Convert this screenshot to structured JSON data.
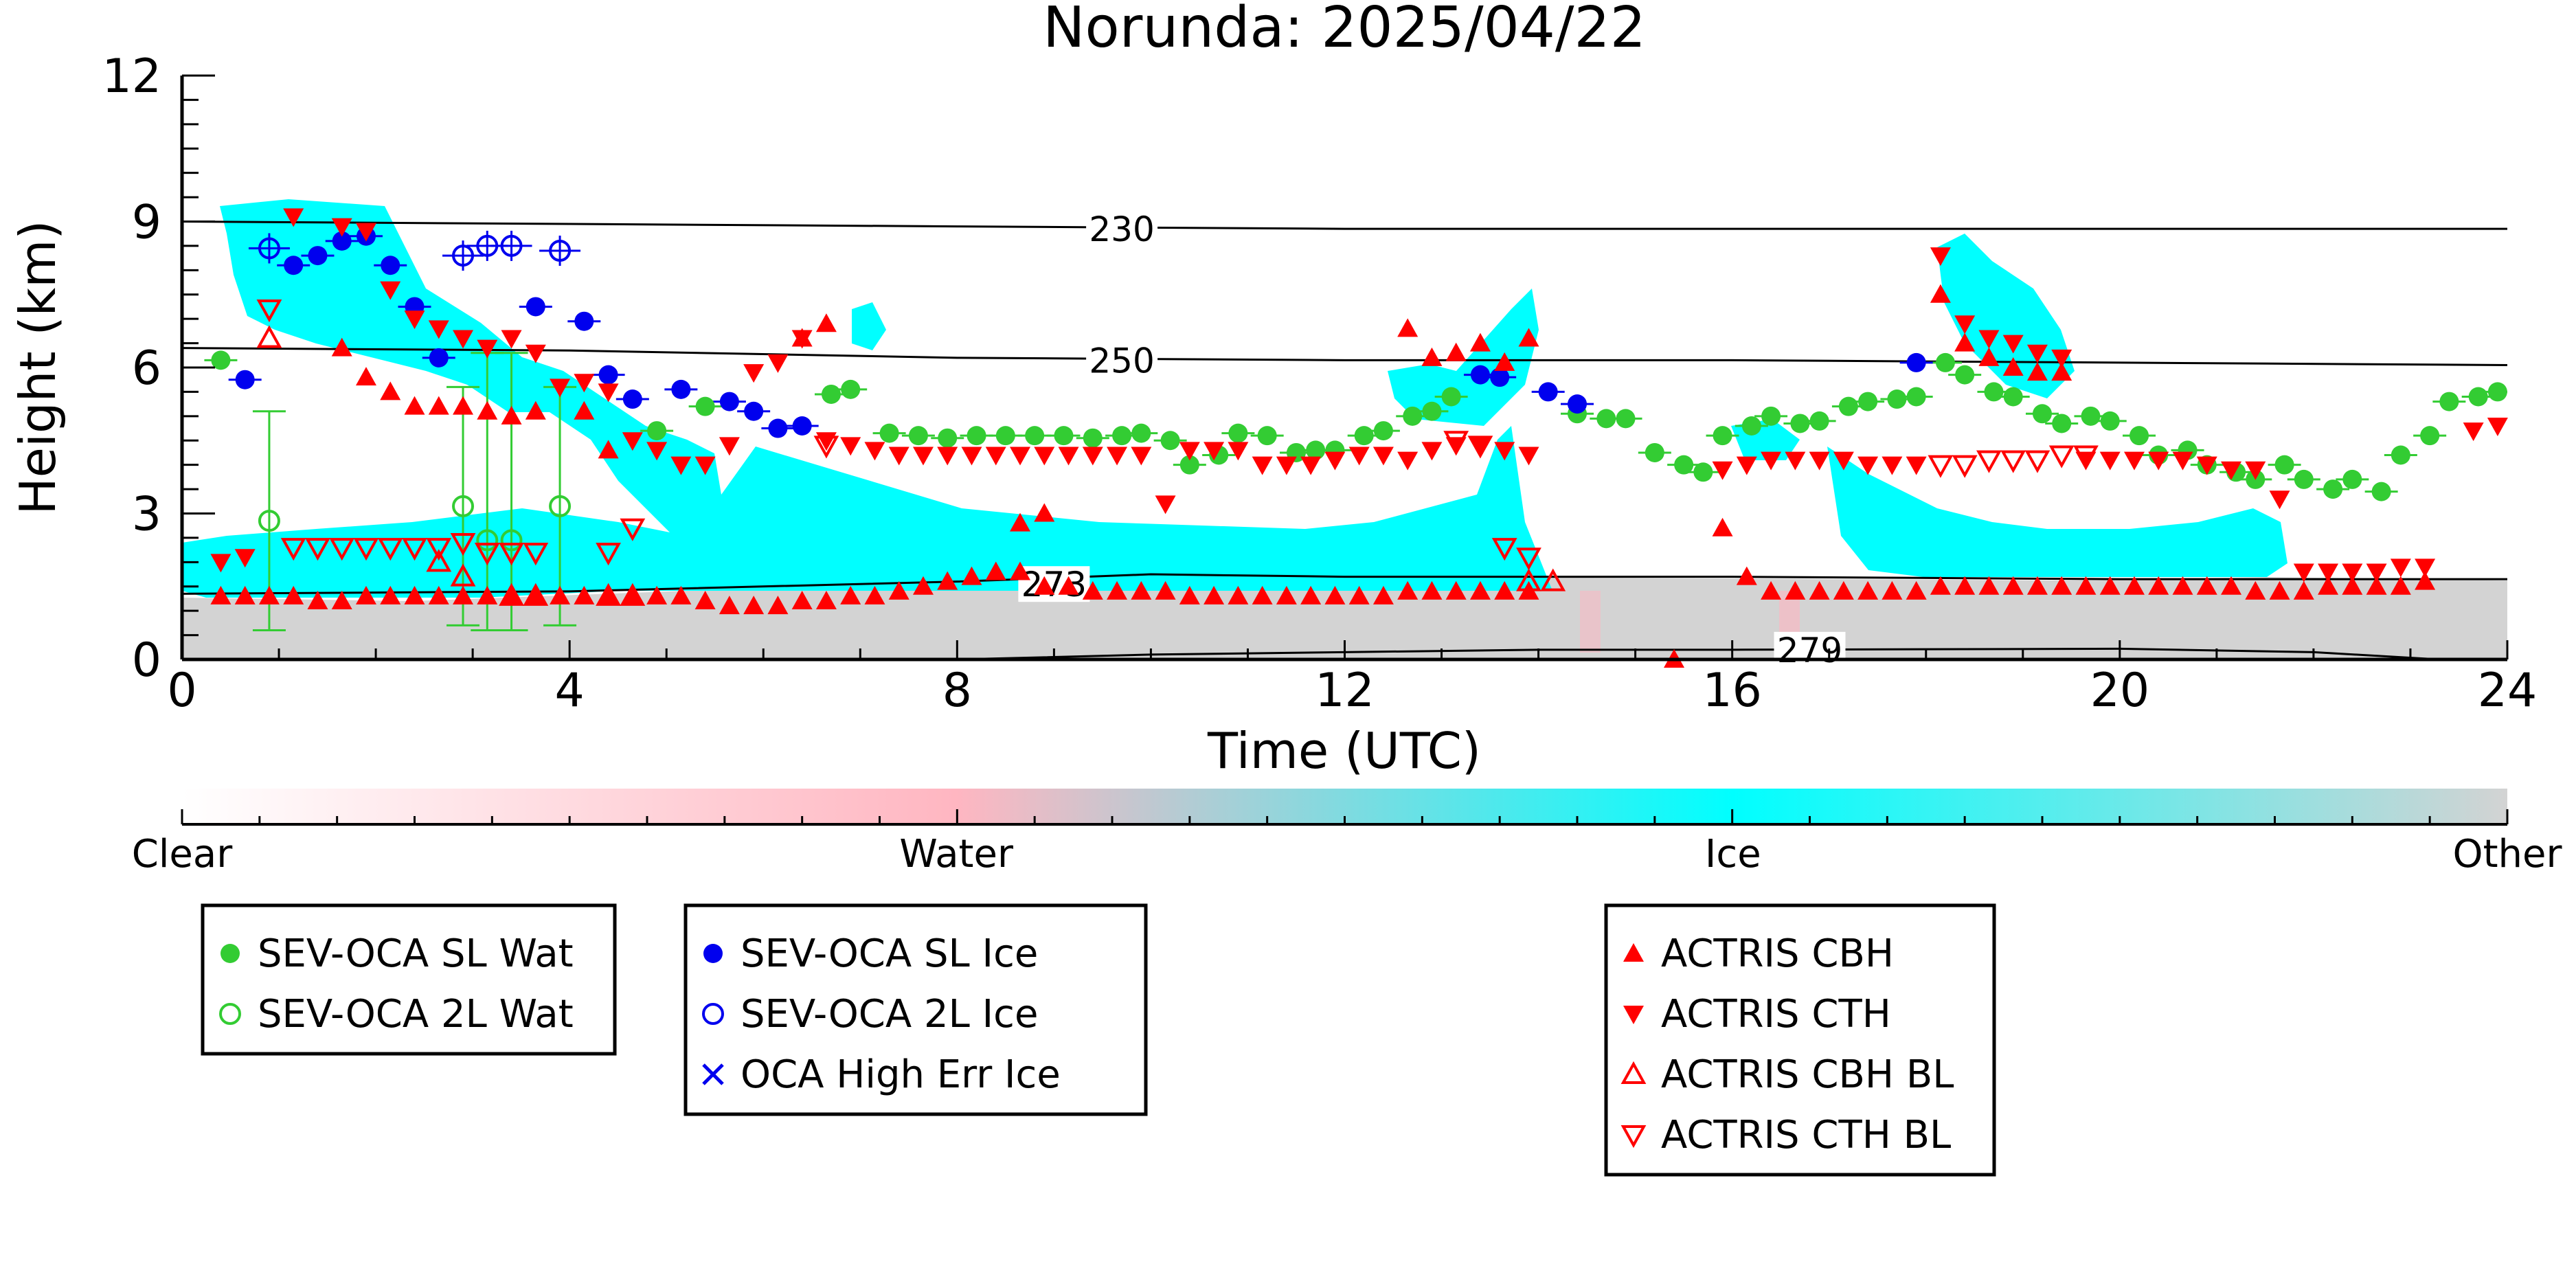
{
  "chart_data": {
    "type": "scatter",
    "title": "Norunda: 2025/04/22",
    "xlabel": "Time (UTC)",
    "ylabel": "Height (km)",
    "xlim": [
      0,
      24
    ],
    "ylim": [
      0,
      12
    ],
    "xticks": [
      0,
      4,
      8,
      12,
      16,
      20,
      24
    ],
    "yticks": [
      0,
      3,
      6,
      9,
      12
    ],
    "grid": false,
    "colorbar": {
      "labels": [
        "Clear",
        "Water",
        "Ice",
        "Other"
      ],
      "colors": [
        "#ffffff",
        "#ffb6c1",
        "#00ffff",
        "#d3d3d3"
      ],
      "positions": [
        0,
        0.333,
        0.667,
        1
      ]
    },
    "isotherms": [
      {
        "label": "230",
        "x": [
          0,
          4,
          8,
          12,
          16,
          20,
          24
        ],
        "y": [
          9.0,
          8.95,
          8.9,
          8.85,
          8.85,
          8.85,
          8.85
        ]
      },
      {
        "label": "250",
        "x": [
          0,
          4,
          8,
          12,
          16,
          20,
          24
        ],
        "y": [
          6.4,
          6.35,
          6.2,
          6.15,
          6.15,
          6.1,
          6.05
        ]
      },
      {
        "label": "273",
        "x": [
          0,
          4,
          8,
          10,
          12,
          16,
          20,
          24
        ],
        "y": [
          1.35,
          1.4,
          1.6,
          1.75,
          1.7,
          1.7,
          1.65,
          1.65
        ]
      },
      {
        "label": "279",
        "x": [
          8,
          10,
          12,
          14,
          16,
          20,
          22,
          23.3
        ],
        "y": [
          0.0,
          0.1,
          0.15,
          0.2,
          0.2,
          0.22,
          0.15,
          0.0
        ]
      }
    ],
    "legend_groups": [
      [
        "SEV-OCA SL Wat",
        "SEV-OCA 2L Wat"
      ],
      [
        "SEV-OCA SL Ice",
        "SEV-OCA 2L Ice",
        "OCA High Err Ice"
      ],
      [
        "ACTRIS CBH",
        "ACTRIS CTH",
        "ACTRIS CBH BL",
        "ACTRIS CTH BL"
      ]
    ],
    "series": [
      {
        "name": "SEV-OCA SL Wat",
        "marker": "filled-circle",
        "color": "#33cc33",
        "x": [
          0.4,
          4.9,
          5.4,
          6.7,
          6.9,
          7.3,
          7.6,
          7.9,
          8.2,
          8.5,
          8.8,
          9.1,
          9.4,
          9.7,
          9.9,
          10.2,
          10.4,
          10.7,
          10.9,
          11.2,
          11.5,
          11.7,
          11.9,
          12.2,
          12.4,
          12.7,
          12.9,
          13.1,
          14.4,
          14.7,
          14.9,
          15.2,
          15.5,
          15.7,
          15.9,
          16.2,
          16.4,
          16.7,
          16.9,
          17.2,
          17.4,
          17.7,
          17.9,
          18.2,
          18.4,
          18.7,
          18.9,
          19.2,
          19.4,
          19.7,
          19.9,
          20.2,
          20.4,
          20.7,
          20.9,
          21.2,
          21.4,
          21.7,
          21.9,
          22.2,
          22.4,
          22.7,
          22.9,
          23.2,
          23.4,
          23.7,
          23.9
        ],
        "y": [
          6.15,
          4.7,
          5.2,
          5.45,
          5.55,
          4.65,
          4.6,
          4.55,
          4.6,
          4.6,
          4.6,
          4.6,
          4.55,
          4.6,
          4.65,
          4.5,
          4.0,
          4.2,
          4.65,
          4.6,
          4.25,
          4.3,
          4.3,
          4.6,
          4.7,
          5.0,
          5.1,
          5.4,
          5.05,
          4.95,
          4.95,
          4.25,
          4.0,
          3.85,
          4.6,
          4.8,
          5.0,
          4.85,
          4.9,
          5.2,
          5.3,
          5.35,
          5.4,
          6.1,
          5.85,
          5.5,
          5.4,
          5.05,
          4.85,
          5.0,
          4.9,
          4.6,
          4.2,
          4.3,
          4.0,
          3.85,
          3.7,
          4.0,
          3.7,
          3.5,
          3.7,
          3.45,
          4.2,
          4.6,
          5.3,
          5.4,
          5.5
        ]
      },
      {
        "name": "SEV-OCA 2L Wat",
        "marker": "open-circle",
        "color": "#33cc33",
        "x": [
          0.9,
          2.9,
          3.15,
          3.4,
          3.9
        ],
        "y": [
          2.85,
          3.15,
          2.45,
          2.45,
          3.15
        ]
      },
      {
        "name": "SEV-OCA SL Ice",
        "marker": "filled-circle",
        "color": "#0000ee",
        "x": [
          0.65,
          1.15,
          1.4,
          1.65,
          1.9,
          2.15,
          2.4,
          2.65,
          3.65,
          4.15,
          4.4,
          4.65,
          5.15,
          5.65,
          5.9,
          6.15,
          6.4,
          13.4,
          13.6,
          14.1,
          14.4,
          17.9
        ],
        "y": [
          5.75,
          8.1,
          8.3,
          8.6,
          8.7,
          8.1,
          7.25,
          6.2,
          7.25,
          6.95,
          5.85,
          5.35,
          5.55,
          5.3,
          5.1,
          4.75,
          4.8,
          5.85,
          5.8,
          5.5,
          5.25,
          6.1
        ]
      },
      {
        "name": "SEV-OCA 2L Ice",
        "marker": "open-circle",
        "color": "#0000ee",
        "x": [
          0.9,
          2.9,
          3.15,
          3.4,
          3.9
        ],
        "y": [
          8.45,
          8.3,
          8.5,
          8.5,
          8.4
        ]
      },
      {
        "name": "OCA High Err Ice",
        "marker": "x",
        "color": "#0000ee",
        "x": [],
        "y": []
      },
      {
        "name": "ACTRIS CBH",
        "marker": "triangle-up",
        "color": "#ff0000",
        "x": [
          0.4,
          0.65,
          0.9,
          1.15,
          1.4,
          1.65,
          1.9,
          2.15,
          2.4,
          2.65,
          2.9,
          3.15,
          3.4,
          3.65,
          3.9,
          4.15,
          4.4,
          4.65,
          4.9,
          5.15,
          5.4,
          5.65,
          5.9,
          6.15,
          6.4,
          6.65,
          6.9,
          7.15,
          7.4,
          7.65,
          7.9,
          8.15,
          8.4,
          8.65,
          8.9,
          9.15,
          9.4,
          9.65,
          9.9,
          10.15,
          10.4,
          10.65,
          10.9,
          11.15,
          11.4,
          11.65,
          11.9,
          12.15,
          12.4,
          12.65,
          12.9,
          13.15,
          13.4,
          13.65,
          13.9,
          16.4,
          16.65,
          16.9,
          17.15,
          17.4,
          17.65,
          17.9,
          18.15,
          18.4,
          18.65,
          18.9,
          19.15,
          19.4,
          19.65,
          19.9,
          20.15,
          20.4,
          20.65,
          20.9,
          21.15,
          21.4,
          21.65,
          21.9,
          22.15,
          22.4,
          22.65,
          22.9,
          23.15,
          1.65,
          1.9,
          2.15,
          2.4,
          2.65,
          2.9,
          3.15,
          3.4,
          3.65,
          12.65,
          12.9,
          13.15,
          13.4,
          13.65,
          13.9,
          15.4,
          15.9,
          16.15,
          18.15,
          18.4,
          18.65,
          18.9,
          19.15,
          19.4,
          6.4,
          6.65,
          8.65,
          8.9,
          4.15,
          4.4
        ],
        "y": [
          1.3,
          1.3,
          1.3,
          1.3,
          1.2,
          1.2,
          1.3,
          1.3,
          1.3,
          1.3,
          1.3,
          1.3,
          1.3,
          1.3,
          1.3,
          1.3,
          1.3,
          1.3,
          1.3,
          1.3,
          1.2,
          1.1,
          1.1,
          1.1,
          1.2,
          1.2,
          1.3,
          1.3,
          1.4,
          1.5,
          1.6,
          1.7,
          1.8,
          1.8,
          1.5,
          1.5,
          1.4,
          1.4,
          1.4,
          1.4,
          1.3,
          1.3,
          1.3,
          1.3,
          1.3,
          1.3,
          1.3,
          1.3,
          1.3,
          1.4,
          1.4,
          1.4,
          1.4,
          1.4,
          1.4,
          1.4,
          1.4,
          1.4,
          1.4,
          1.4,
          1.4,
          1.4,
          1.5,
          1.5,
          1.5,
          1.5,
          1.5,
          1.5,
          1.5,
          1.5,
          1.5,
          1.5,
          1.5,
          1.5,
          1.5,
          1.4,
          1.4,
          1.4,
          1.5,
          1.5,
          1.5,
          1.5,
          1.6,
          6.4,
          5.8,
          5.5,
          5.2,
          5.2,
          5.2,
          5.1,
          5.0,
          5.1,
          6.8,
          6.2,
          6.3,
          6.5,
          6.1,
          6.6,
          0.0,
          2.7,
          1.7,
          7.5,
          6.5,
          6.2,
          6.0,
          5.9,
          5.9,
          6.6,
          6.9,
          2.8,
          3.0,
          5.1,
          4.3
        ]
      },
      {
        "name": "ACTRIS CTH",
        "marker": "triangle-down",
        "color": "#ff0000",
        "x": [
          0.4,
          0.65,
          1.15,
          1.65,
          1.9,
          2.15,
          2.4,
          2.65,
          2.9,
          3.15,
          3.4,
          3.65,
          3.9,
          4.15,
          4.4,
          4.65,
          4.9,
          5.15,
          5.4,
          5.65,
          5.9,
          6.15,
          6.4,
          6.65,
          6.9,
          7.15,
          7.4,
          7.65,
          7.9,
          8.15,
          8.4,
          8.65,
          8.9,
          9.15,
          9.4,
          9.65,
          9.9,
          10.15,
          10.4,
          10.65,
          10.9,
          11.15,
          11.4,
          11.65,
          11.9,
          12.15,
          12.4,
          12.65,
          12.9,
          13.15,
          13.4,
          13.65,
          13.9,
          15.9,
          16.15,
          16.4,
          16.65,
          16.9,
          17.15,
          17.4,
          17.65,
          17.9,
          18.15,
          18.4,
          18.65,
          18.9,
          19.15,
          19.4,
          19.65,
          19.9,
          20.15,
          20.4,
          20.65,
          20.9,
          21.15,
          21.4,
          21.65,
          21.9,
          22.15,
          22.4,
          22.65,
          22.9,
          23.15,
          23.65,
          23.9
        ],
        "y": [
          2.0,
          2.1,
          9.1,
          8.9,
          8.8,
          7.6,
          7.0,
          6.8,
          6.6,
          6.4,
          6.6,
          6.3,
          5.6,
          5.7,
          5.5,
          4.5,
          4.3,
          4.0,
          4.0,
          4.4,
          5.9,
          6.1,
          6.6,
          4.5,
          4.4,
          4.3,
          4.2,
          4.2,
          4.2,
          4.2,
          4.2,
          4.2,
          4.2,
          4.2,
          4.2,
          4.2,
          4.2,
          3.2,
          4.3,
          4.3,
          4.3,
          4.0,
          4.0,
          4.0,
          4.1,
          4.2,
          4.2,
          4.1,
          4.3,
          4.4,
          4.4,
          4.3,
          4.2,
          3.9,
          4.0,
          4.1,
          4.1,
          4.1,
          4.1,
          4.0,
          4.0,
          4.0,
          8.3,
          6.9,
          6.6,
          6.5,
          6.3,
          6.2,
          4.1,
          4.1,
          4.1,
          4.1,
          4.1,
          4.0,
          3.9,
          3.9,
          3.3,
          1.8,
          1.8,
          1.8,
          1.8,
          1.9,
          1.9,
          4.7,
          4.8
        ]
      },
      {
        "name": "ACTRIS CBH BL",
        "marker": "open-triangle-up",
        "color": "#ff0000",
        "x": [
          0.9,
          2.65,
          2.9,
          3.4,
          3.65,
          4.4,
          4.65,
          13.9,
          14.15
        ],
        "y": [
          6.6,
          2.0,
          1.7,
          1.3,
          1.3,
          1.3,
          1.3,
          1.6,
          1.6
        ]
      },
      {
        "name": "ACTRIS CTH BL",
        "marker": "open-triangle-down",
        "color": "#ff0000",
        "x": [
          0.9,
          1.15,
          1.4,
          1.65,
          1.9,
          2.15,
          2.4,
          2.65,
          2.9,
          3.15,
          3.4,
          3.65,
          4.4,
          4.65,
          6.65,
          13.15,
          13.4,
          13.65,
          13.9,
          18.15,
          18.4,
          18.65,
          18.9,
          19.15,
          19.4,
          19.65
        ],
        "y": [
          7.2,
          2.3,
          2.3,
          2.3,
          2.3,
          2.3,
          2.3,
          2.3,
          2.4,
          2.2,
          2.2,
          2.2,
          2.2,
          2.7,
          4.4,
          4.5,
          4.4,
          2.3,
          2.1,
          4.0,
          4.0,
          4.1,
          4.1,
          4.1,
          4.2,
          4.2
        ]
      }
    ]
  }
}
